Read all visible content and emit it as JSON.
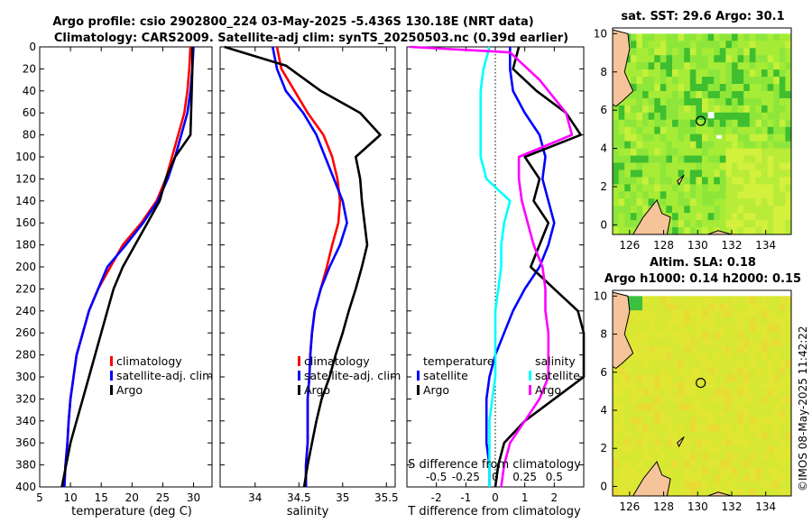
{
  "title": {
    "line1": "Argo profile: csio 2902800_224 03-May-2025 -5.436S 130.18E (NRT data)",
    "line2": "Climatology: CARS2009. Satellite-adj clim: synTS_20250503.nc (0.39d earlier)"
  },
  "colors": {
    "climatology": "#ff0000",
    "satellite": "#0000ff",
    "argo": "#000000",
    "salinity_clim": "#ff00ff",
    "salinity_sat": "#00ffff",
    "land": "#f5c49a",
    "sst_field": "#7fe830",
    "sla_field": "#d9e830",
    "coast": "#000000"
  },
  "chart_data": [
    {
      "type": "line",
      "id": "temperature",
      "xlabel": "temperature (deg C)",
      "xlim": [
        5,
        33
      ],
      "xticks": [
        "5",
        "10",
        "15",
        "20",
        "25",
        "30"
      ],
      "ylim": [
        0,
        400
      ],
      "yticks": [
        "0",
        "20",
        "40",
        "60",
        "80",
        "100",
        "120",
        "140",
        "160",
        "180",
        "200",
        "220",
        "240",
        "260",
        "280",
        "300",
        "320",
        "340",
        "360",
        "380",
        "400"
      ],
      "legend": [
        "climatology",
        "satellite-adj. clim",
        "Argo"
      ],
      "series": [
        {
          "name": "climatology",
          "color": "#ff0000",
          "x": [
            29.5,
            29.3,
            29.0,
            28.5,
            27.5,
            26.5,
            25.5,
            24.0,
            21.5,
            18.5,
            16.5,
            14.5,
            13.0,
            12.0,
            11.0,
            10.5,
            10.0,
            9.7,
            9.5,
            9.2,
            9.0
          ],
          "y": [
            0,
            20,
            40,
            60,
            80,
            100,
            120,
            140,
            160,
            180,
            200,
            220,
            240,
            260,
            280,
            300,
            320,
            340,
            360,
            380,
            400
          ]
        },
        {
          "name": "satellite-adj. clim",
          "color": "#0000ff",
          "x": [
            30.0,
            29.8,
            29.5,
            29.0,
            28.0,
            27.0,
            25.8,
            24.2,
            21.8,
            19.0,
            16.0,
            14.5,
            13.0,
            12.0,
            11.0,
            10.5,
            10.0,
            9.7,
            9.5,
            9.2,
            9.0
          ],
          "y": [
            0,
            20,
            40,
            60,
            80,
            100,
            120,
            140,
            160,
            180,
            200,
            220,
            240,
            260,
            280,
            300,
            320,
            340,
            360,
            380,
            400
          ]
        },
        {
          "name": "Argo",
          "color": "#000000",
          "x": [
            29.8,
            29.8,
            29.7,
            29.6,
            29.5,
            27.0,
            25.5,
            24.5,
            22.5,
            20.5,
            18.5,
            17.0,
            16.0,
            15.0,
            14.0,
            13.0,
            12.0,
            11.0,
            10.0,
            9.3,
            8.6
          ],
          "y": [
            0,
            20,
            40,
            60,
            80,
            100,
            120,
            140,
            160,
            180,
            200,
            220,
            240,
            260,
            280,
            300,
            320,
            340,
            360,
            380,
            400
          ]
        }
      ]
    },
    {
      "type": "line",
      "id": "salinity",
      "xlabel": "salinity",
      "xlim": [
        33.6,
        35.6
      ],
      "xticks": [
        "34",
        "34.5",
        "35",
        "35.5"
      ],
      "ylim": [
        0,
        400
      ],
      "legend": [
        "climatology",
        "satellite-adj. clim",
        "Argo"
      ],
      "series": [
        {
          "name": "climatology",
          "color": "#ff0000",
          "x": [
            34.25,
            34.3,
            34.45,
            34.6,
            34.78,
            34.88,
            34.94,
            34.97,
            34.95,
            34.88,
            34.82,
            34.75,
            34.68,
            34.65,
            34.63,
            34.62,
            34.6,
            34.6,
            34.6,
            34.58,
            34.58
          ],
          "y": [
            0,
            20,
            40,
            60,
            80,
            100,
            120,
            140,
            160,
            180,
            200,
            220,
            240,
            260,
            280,
            300,
            320,
            340,
            360,
            380,
            400
          ]
        },
        {
          "name": "satellite-adj. clim",
          "color": "#0000ff",
          "x": [
            34.2,
            34.25,
            34.35,
            34.55,
            34.7,
            34.8,
            34.9,
            35.0,
            35.05,
            34.97,
            34.85,
            34.75,
            34.68,
            34.65,
            34.63,
            34.62,
            34.6,
            34.6,
            34.6,
            34.58,
            34.58
          ],
          "y": [
            0,
            20,
            40,
            60,
            80,
            100,
            120,
            140,
            160,
            180,
            200,
            220,
            240,
            260,
            280,
            300,
            320,
            340,
            360,
            380,
            400
          ]
        },
        {
          "name": "Argo",
          "color": "#000000",
          "x": [
            33.65,
            34.35,
            34.75,
            35.2,
            35.43,
            35.15,
            35.2,
            35.22,
            35.25,
            35.28,
            35.22,
            35.15,
            35.07,
            35.0,
            34.92,
            34.85,
            34.76,
            34.7,
            34.65,
            34.6,
            34.56
          ],
          "y": [
            0,
            17,
            40,
            60,
            80,
            100,
            120,
            140,
            160,
            180,
            200,
            220,
            240,
            260,
            280,
            300,
            320,
            340,
            360,
            380,
            400
          ]
        }
      ]
    },
    {
      "type": "line",
      "id": "differences",
      "xlabel": "T difference from climatology",
      "xlabel_s": "S difference from climatology",
      "xlim": [
        -3,
        3
      ],
      "xticks": [
        "-2",
        "-1",
        "0",
        "1",
        "2"
      ],
      "xticks_s": [
        "-0.5",
        "-0.25",
        "0",
        "0.25",
        "0.5"
      ],
      "ylim": [
        0,
        400
      ],
      "legend_t": [
        "temperature",
        "satellite",
        "Argo"
      ],
      "legend_s": [
        "salinity",
        "satellite",
        "Argo"
      ],
      "series": [
        {
          "name": "T satellite",
          "color": "#0000ff",
          "x": [
            0.5,
            0.5,
            0.6,
            1.0,
            1.5,
            1.7,
            1.6,
            1.8,
            2.0,
            1.8,
            1.5,
            1.0,
            0.6,
            0.3,
            0.0,
            -0.2,
            -0.3,
            -0.3,
            -0.3,
            -0.2,
            -0.2
          ],
          "y": [
            0,
            20,
            40,
            60,
            80,
            100,
            120,
            140,
            160,
            180,
            200,
            220,
            240,
            260,
            280,
            300,
            320,
            340,
            360,
            380,
            400
          ]
        },
        {
          "name": "T Argo",
          "color": "#000000",
          "x": [
            0.8,
            0.6,
            1.4,
            2.4,
            2.9,
            1.0,
            1.5,
            1.3,
            1.8,
            1.5,
            1.2,
            2.0,
            2.8,
            3.0,
            3.0,
            3.0,
            2.0,
            1.0,
            0.3,
            0.1,
            0.0
          ],
          "y": [
            0,
            20,
            40,
            60,
            80,
            100,
            120,
            140,
            160,
            180,
            200,
            220,
            240,
            260,
            280,
            300,
            320,
            340,
            360,
            380,
            400
          ]
        },
        {
          "name": "S satellite",
          "color": "#00ffff",
          "x": [
            -0.2,
            -0.4,
            -0.5,
            -0.5,
            -0.5,
            -0.5,
            -0.3,
            0.5,
            0.3,
            0.2,
            0.2,
            0.1,
            0.0,
            0.0,
            0.0,
            0.0,
            -0.1,
            -0.2,
            -0.2,
            -0.2,
            -0.2
          ],
          "y": [
            0,
            20,
            40,
            60,
            80,
            100,
            120,
            140,
            160,
            180,
            200,
            220,
            240,
            260,
            280,
            300,
            320,
            340,
            360,
            380,
            400
          ]
        },
        {
          "name": "S Argo",
          "color": "#ff00ff",
          "x": [
            -2.9,
            0.5,
            1.5,
            2.4,
            2.6,
            0.8,
            0.8,
            0.9,
            1.1,
            1.3,
            1.6,
            1.7,
            1.7,
            1.8,
            1.8,
            1.8,
            1.5,
            1.0,
            0.5,
            0.3,
            0.2
          ],
          "y": [
            0,
            5,
            30,
            60,
            80,
            100,
            120,
            140,
            160,
            180,
            200,
            220,
            240,
            260,
            280,
            300,
            320,
            340,
            360,
            380,
            400
          ]
        }
      ]
    },
    {
      "type": "heatmap",
      "id": "sst_map",
      "title": "sat. SST: 29.6 Argo: 30.1",
      "xlim": [
        125,
        135.5
      ],
      "xticks": [
        "126",
        "128",
        "130",
        "132",
        "134"
      ],
      "ylim": [
        -0.5,
        10.3
      ],
      "yticks": [
        "0",
        "2",
        "4",
        "6",
        "8",
        "10"
      ],
      "marker": {
        "lon": 130.18,
        "lat": 5.44
      }
    },
    {
      "type": "heatmap",
      "id": "sla_map",
      "title1": "Altim. SLA: 0.18",
      "title2": "Argo h1000: 0.14 h2000: 0.15",
      "xlim": [
        125,
        135.5
      ],
      "xticks": [
        "126",
        "128",
        "130",
        "132",
        "134"
      ],
      "ylim": [
        -0.5,
        10.3
      ],
      "yticks": [
        "0",
        "2",
        "4",
        "6",
        "8",
        "10"
      ],
      "marker": {
        "lon": 130.18,
        "lat": 5.44
      }
    }
  ],
  "credit": "©IMOS 08-May-2025 11:42:22"
}
